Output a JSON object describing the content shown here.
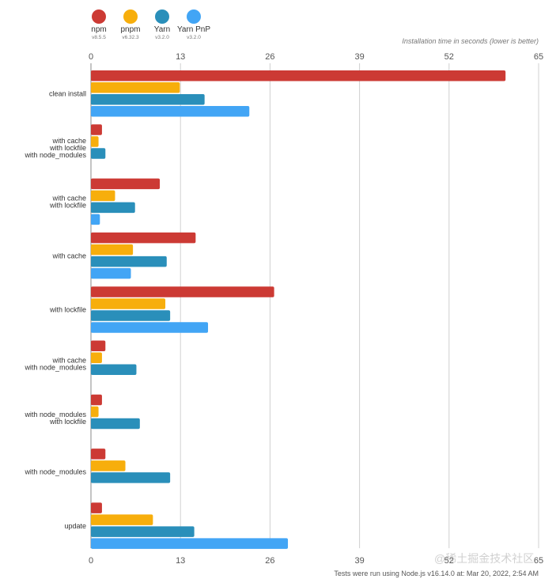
{
  "chart_data": {
    "type": "bar",
    "orientation": "horizontal",
    "title": "Installation time in seconds (lower is better)",
    "xlim": [
      0,
      65
    ],
    "xticks": [
      0,
      13,
      26,
      39,
      52,
      65
    ],
    "grid": true,
    "legend_position": "top-left",
    "categories": [
      [
        "clean install"
      ],
      [
        "with cache",
        "with lockfile",
        "with node_modules"
      ],
      [
        "with cache",
        "with lockfile"
      ],
      [
        "with cache"
      ],
      [
        "with lockfile"
      ],
      [
        "with cache",
        "with node_modules"
      ],
      [
        "with node_modules",
        "with lockfile"
      ],
      [
        "with node_modules"
      ],
      [
        "update"
      ]
    ],
    "series": [
      {
        "name": "npm",
        "version": "v8.5.5",
        "color": "#cc3a34",
        "values": [
          60.2,
          1.6,
          10.0,
          15.2,
          26.6,
          2.1,
          1.6,
          2.1,
          1.6
        ]
      },
      {
        "name": "pnpm",
        "version": "v6.32.3",
        "color": "#f7ae0c",
        "values": [
          12.9,
          1.1,
          3.5,
          6.1,
          10.8,
          1.6,
          1.1,
          5.0,
          9.0
        ]
      },
      {
        "name": "Yarn",
        "version": "v3.2.0",
        "color": "#2a8fba",
        "values": [
          16.5,
          2.1,
          6.4,
          11.0,
          11.5,
          6.6,
          7.1,
          11.5,
          15.0
        ]
      },
      {
        "name": "Yarn PnP",
        "version": "v3.2.0",
        "color": "#42a5f5",
        "values": [
          23.0,
          null,
          1.3,
          5.8,
          17.0,
          null,
          null,
          null,
          28.6
        ]
      }
    ]
  },
  "footer": "Tests were run using Node.js v16.14.0 at: Mar 20, 2022, 2:54 AM",
  "watermark": "@稀土掘金技术社区"
}
